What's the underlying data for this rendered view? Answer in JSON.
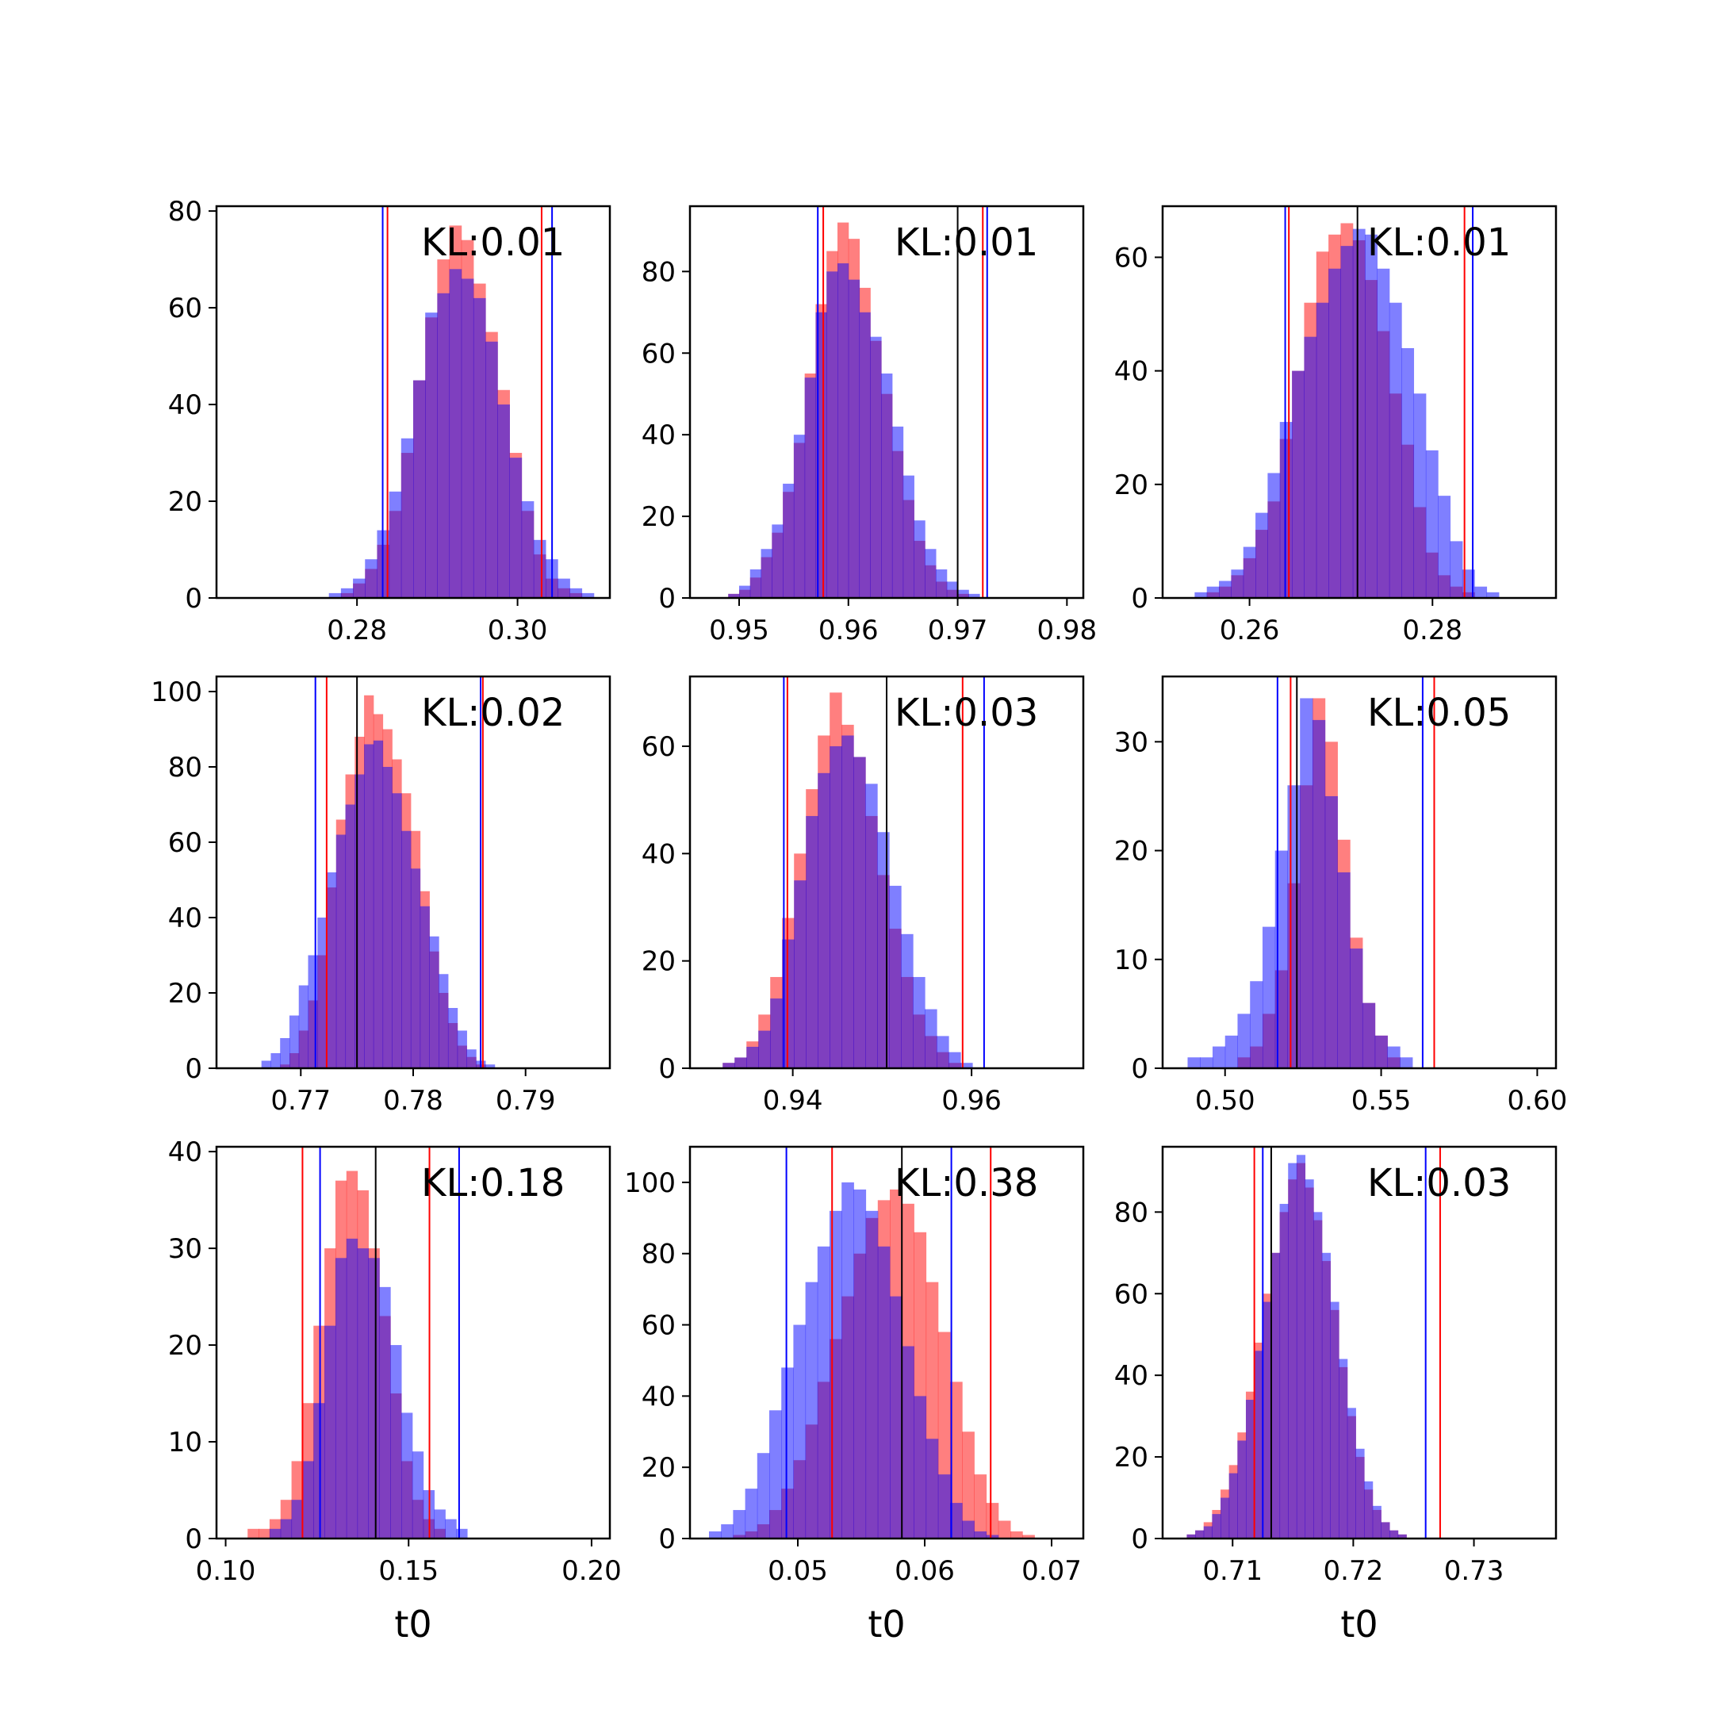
{
  "chart_data": {
    "type": "histogram-grid",
    "description_colors": {
      "series_a": "#ff0000",
      "series_b": "#0000ff",
      "reference": "#000000"
    },
    "xlabel": "t0",
    "panels": [
      {
        "kl_label": "KL:0.01",
        "xlim": [
          0.2625,
          0.3115
        ],
        "ylim": [
          0,
          81
        ],
        "xticks": [
          0.28,
          0.3
        ],
        "xtick_labels": [
          "0.28",
          "0.30"
        ],
        "yticks": [
          0,
          20,
          40,
          60,
          80
        ],
        "ytick_labels": [
          "0",
          "20",
          "40",
          "60",
          "80"
        ],
        "bin_start": 0.2765,
        "bin_width": 0.0015,
        "red": [
          0,
          1,
          3,
          6,
          11,
          18,
          30,
          45,
          58,
          70,
          77,
          74,
          65,
          55,
          43,
          30,
          18,
          9,
          4,
          2,
          1,
          0,
          0,
          0
        ],
        "blue": [
          1,
          2,
          4,
          8,
          14,
          22,
          33,
          45,
          59,
          63,
          68,
          66,
          62,
          53,
          40,
          29,
          20,
          12,
          8,
          4,
          2,
          1,
          0,
          0
        ],
        "red_lines": [
          0.2838,
          0.303
        ],
        "blue_lines": [
          0.2832,
          0.3043
        ],
        "black_lines": []
      },
      {
        "kl_label": "KL:0.01",
        "xlim": [
          0.9455,
          0.9815
        ],
        "ylim": [
          0,
          96
        ],
        "xticks": [
          0.95,
          0.96,
          0.97,
          0.98
        ],
        "xtick_labels": [
          "0.95",
          "0.96",
          "0.97",
          "0.98"
        ],
        "bin_start": 0.947,
        "bin_width": 0.001,
        "yticks": [
          0,
          20,
          40,
          60,
          80
        ],
        "ytick_labels": [
          "0",
          "20",
          "40",
          "60",
          "80"
        ],
        "red": [
          0,
          0,
          1,
          2,
          5,
          10,
          16,
          26,
          38,
          55,
          72,
          85,
          92,
          88,
          76,
          63,
          50,
          36,
          24,
          14,
          8,
          4,
          2,
          1,
          0,
          0,
          0
        ],
        "blue": [
          0,
          0,
          1,
          3,
          7,
          12,
          18,
          28,
          40,
          54,
          70,
          80,
          82,
          78,
          70,
          64,
          55,
          42,
          30,
          19,
          12,
          7,
          4,
          2,
          1,
          0,
          0
        ],
        "red_lines": [
          0.9577,
          0.9723
        ],
        "blue_lines": [
          0.9572,
          0.9727
        ],
        "black_lines": [
          0.97
        ]
      },
      {
        "kl_label": "KL:0.01",
        "xlim": [
          0.2505,
          0.2935
        ],
        "ylim": [
          0,
          69
        ],
        "xticks": [
          0.26,
          0.28
        ],
        "xtick_labels": [
          "0.26",
          "0.28"
        ],
        "yticks": [
          0,
          20,
          40,
          60
        ],
        "ytick_labels": [
          "0",
          "20",
          "40",
          "60"
        ],
        "bin_start": 0.254,
        "bin_width": 0.00133,
        "red": [
          0,
          1,
          2,
          4,
          7,
          12,
          17,
          28,
          40,
          52,
          61,
          64,
          66,
          63,
          56,
          47,
          36,
          27,
          16,
          8,
          4,
          2,
          1,
          0,
          0,
          0,
          0,
          0,
          0,
          0,
          0,
          0
        ],
        "blue": [
          1,
          2,
          3,
          5,
          9,
          15,
          22,
          31,
          40,
          46,
          52,
          58,
          62,
          65,
          64,
          58,
          52,
          44,
          36,
          26,
          18,
          10,
          5,
          2,
          1,
          0,
          0,
          0,
          0,
          0,
          0,
          0
        ],
        "red_lines": [
          0.2643,
          0.2835
        ],
        "blue_lines": [
          0.2639,
          0.2844
        ],
        "black_lines": [
          0.2718
        ]
      },
      {
        "kl_label": "KL:0.02",
        "xlim": [
          0.7625,
          0.7975
        ],
        "ylim": [
          0,
          104
        ],
        "xticks": [
          0.77,
          0.78,
          0.79
        ],
        "xtick_labels": [
          "0.77",
          "0.78",
          "0.79"
        ],
        "yticks": [
          0,
          20,
          40,
          60,
          80,
          100
        ],
        "ytick_labels": [
          "0",
          "20",
          "40",
          "60",
          "80",
          "100"
        ],
        "bin_start": 0.7665,
        "bin_width": 0.00083,
        "red": [
          0,
          0,
          1,
          4,
          10,
          18,
          30,
          48,
          66,
          78,
          88,
          99,
          94,
          90,
          82,
          73,
          63,
          47,
          31,
          20,
          12,
          6,
          3,
          1,
          0,
          0,
          0,
          0,
          0,
          0,
          0,
          0,
          0,
          0,
          0,
          0,
          0,
          0,
          0,
          0,
          0,
          0
        ],
        "blue": [
          2,
          4,
          8,
          14,
          22,
          30,
          40,
          52,
          62,
          70,
          78,
          86,
          87,
          80,
          73,
          63,
          53,
          43,
          35,
          25,
          16,
          10,
          5,
          2,
          1,
          0,
          0,
          0,
          0,
          0,
          0,
          0,
          0,
          0,
          0,
          0,
          0,
          0,
          0,
          0,
          0,
          0
        ],
        "red_lines": [
          0.7723,
          0.7862
        ],
        "blue_lines": [
          0.7713,
          0.786
        ],
        "black_lines": [
          0.775
        ]
      },
      {
        "kl_label": "KL:0.03",
        "xlim": [
          0.9285,
          0.9725
        ],
        "ylim": [
          0,
          73
        ],
        "xticks": [
          0.94,
          0.96
        ],
        "xtick_labels": [
          "0.94",
          "0.96"
        ],
        "yticks": [
          0,
          20,
          40,
          60
        ],
        "ytick_labels": [
          "0",
          "20",
          "40",
          "60"
        ],
        "bin_start": 0.9295,
        "bin_width": 0.00133,
        "red": [
          0,
          0,
          1,
          2,
          5,
          10,
          17,
          28,
          40,
          52,
          62,
          70,
          64,
          58,
          47,
          36,
          26,
          17,
          10,
          6,
          3,
          1,
          0,
          0,
          0,
          0,
          0,
          0,
          0,
          0,
          0,
          0
        ],
        "blue": [
          0,
          0,
          1,
          2,
          4,
          7,
          13,
          24,
          35,
          47,
          55,
          60,
          62,
          58,
          53,
          44,
          34,
          25,
          17,
          11,
          6,
          3,
          1,
          0,
          0,
          0,
          0,
          0,
          0,
          0,
          0,
          0
        ],
        "red_lines": [
          0.9394,
          0.959
        ],
        "blue_lines": [
          0.939,
          0.9614
        ],
        "black_lines": [
          0.9505
        ]
      },
      {
        "kl_label": "KL:0.05",
        "xlim": [
          0.48,
          0.606
        ],
        "ylim": [
          0,
          36
        ],
        "xticks": [
          0.5,
          0.55,
          0.6
        ],
        "xtick_labels": [
          "0.50",
          "0.55",
          "0.60"
        ],
        "yticks": [
          0,
          10,
          20,
          30
        ],
        "ytick_labels": [
          "0",
          "10",
          "20",
          "30"
        ],
        "bin_start": 0.488,
        "bin_width": 0.004,
        "red": [
          0,
          0,
          0,
          0,
          1,
          2,
          5,
          9,
          17,
          26,
          34,
          30,
          21,
          12,
          6,
          3,
          1,
          0,
          0,
          0,
          0,
          0,
          0,
          0
        ],
        "blue": [
          1,
          1,
          2,
          3,
          5,
          8,
          13,
          20,
          26,
          34,
          32,
          25,
          18,
          11,
          6,
          3,
          2,
          1,
          0,
          0,
          0,
          0,
          0,
          0
        ],
        "red_lines": [
          0.521,
          0.567
        ],
        "blue_lines": [
          0.5168,
          0.5633
        ],
        "black_lines": [
          0.523
        ]
      },
      {
        "kl_label": "KL:0.18",
        "xlim": [
          0.0975,
          0.205
        ],
        "ylim": [
          0,
          40.5
        ],
        "xticks": [
          0.1,
          0.15,
          0.2
        ],
        "xtick_labels": [
          "0.10",
          "0.15",
          "0.20"
        ],
        "yticks": [
          0,
          10,
          20,
          30,
          40
        ],
        "ytick_labels": [
          "0",
          "10",
          "20",
          "30",
          "40"
        ],
        "bin_start": 0.103,
        "bin_width": 0.003,
        "red": [
          0,
          1,
          1,
          2,
          4,
          8,
          14,
          22,
          30,
          37,
          38,
          36,
          30,
          23,
          15,
          8,
          4,
          2,
          1,
          0,
          0,
          0,
          0,
          0,
          0,
          0,
          0,
          0,
          0,
          0
        ],
        "blue": [
          0,
          0,
          0,
          1,
          2,
          4,
          8,
          14,
          22,
          29,
          31,
          30,
          29,
          26,
          20,
          13,
          9,
          5,
          3,
          2,
          1,
          0,
          0,
          0,
          0,
          0,
          0,
          0,
          0,
          0
        ],
        "red_lines": [
          0.121,
          0.1557
        ],
        "blue_lines": [
          0.1258,
          0.1638
        ],
        "black_lines": [
          0.141
        ]
      },
      {
        "kl_label": "KL:0.38",
        "xlim": [
          0.0415,
          0.0725
        ],
        "ylim": [
          0,
          110
        ],
        "xticks": [
          0.05,
          0.06,
          0.07
        ],
        "xtick_labels": [
          "0.05",
          "0.06",
          "0.07"
        ],
        "yticks": [
          0,
          20,
          40,
          60,
          80,
          100
        ],
        "ytick_labels": [
          "0",
          "20",
          "40",
          "60",
          "80",
          "100"
        ],
        "bin_start": 0.043,
        "bin_width": 0.00095,
        "red": [
          0,
          0,
          1,
          2,
          4,
          8,
          14,
          22,
          32,
          44,
          56,
          68,
          80,
          90,
          95,
          98,
          94,
          86,
          72,
          58,
          44,
          30,
          18,
          10,
          5,
          2,
          1,
          0,
          0,
          0,
          0,
          0
        ],
        "blue": [
          2,
          4,
          8,
          14,
          24,
          36,
          48,
          60,
          72,
          82,
          92,
          100,
          98,
          92,
          82,
          68,
          54,
          40,
          28,
          18,
          10,
          5,
          2,
          1,
          0,
          0,
          0,
          0,
          0,
          0,
          0,
          0
        ],
        "red_lines": [
          0.0527,
          0.0652
        ],
        "blue_lines": [
          0.0491,
          0.0621
        ],
        "black_lines": [
          0.0582
        ]
      },
      {
        "kl_label": "KL:0.03",
        "xlim": [
          0.7042,
          0.7368
        ],
        "ylim": [
          0,
          96
        ],
        "xticks": [
          0.71,
          0.72,
          0.73
        ],
        "xtick_labels": [
          "0.71",
          "0.72",
          "0.73"
        ],
        "yticks": [
          0,
          20,
          40,
          60,
          80
        ],
        "ytick_labels": [
          "0",
          "20",
          "40",
          "60",
          "80"
        ],
        "bin_start": 0.7055,
        "bin_width": 0.0007,
        "red": [
          0,
          1,
          2,
          4,
          7,
          12,
          18,
          26,
          36,
          48,
          60,
          70,
          80,
          88,
          92,
          86,
          78,
          68,
          56,
          42,
          30,
          20,
          12,
          7,
          4,
          2,
          1,
          0,
          0,
          0,
          0,
          0,
          0,
          0,
          0,
          0,
          0,
          0,
          0,
          0,
          0,
          0,
          0,
          0,
          0,
          0,
          0
        ],
        "blue": [
          0,
          1,
          2,
          3,
          6,
          10,
          16,
          24,
          34,
          46,
          58,
          70,
          82,
          92,
          94,
          88,
          80,
          70,
          58,
          44,
          32,
          22,
          14,
          8,
          4,
          2,
          1,
          0,
          0,
          0,
          0,
          0,
          0,
          0,
          0,
          0,
          0,
          0,
          0,
          0,
          0,
          0,
          0,
          0,
          0,
          0,
          0
        ],
        "red_lines": [
          0.7118,
          0.7272
        ],
        "blue_lines": [
          0.7125,
          0.726
        ],
        "black_lines": [
          0.7132
        ]
      }
    ]
  }
}
